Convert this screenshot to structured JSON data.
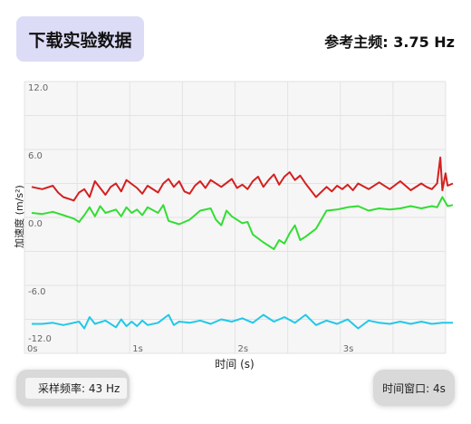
{
  "header": {
    "download_button": "下载实验数据",
    "main_frequency": "参考主频: 3.75 Hz"
  },
  "footer": {
    "sample_rate": "采样频率: 43 Hz",
    "time_window": "时间窗口: 4s"
  },
  "colors": {
    "red": "#d42020",
    "green": "#33dd33",
    "cyan": "#22c8e8"
  },
  "chart_data": {
    "type": "line",
    "xlabel": "时间 (s)",
    "ylabel": "加速度 (m/s²)",
    "xlim": [
      0,
      4
    ],
    "ylim": [
      -12,
      12
    ],
    "yticks": [
      "12.0",
      "6.0",
      "0.0",
      "-6.0",
      "-12.0"
    ],
    "yticks_values": [
      12,
      6,
      0,
      -6,
      -12
    ],
    "xticks": [
      "0s",
      "1s",
      "2s",
      "3s"
    ],
    "xticks_values": [
      0,
      1,
      2,
      3
    ],
    "grid": true,
    "series": [
      {
        "color": "red",
        "x": [
          0,
          0.1,
          0.2,
          0.25,
          0.3,
          0.4,
          0.45,
          0.5,
          0.55,
          0.6,
          0.7,
          0.75,
          0.8,
          0.85,
          0.9,
          1.0,
          1.05,
          1.1,
          1.2,
          1.25,
          1.3,
          1.35,
          1.4,
          1.45,
          1.5,
          1.55,
          1.6,
          1.65,
          1.7,
          1.8,
          1.9,
          1.95,
          2.0,
          2.05,
          2.1,
          2.15,
          2.2,
          2.25,
          2.3,
          2.35,
          2.4,
          2.45,
          2.5,
          2.55,
          2.6,
          2.65,
          2.7,
          2.8,
          2.85,
          2.9,
          2.95,
          3.0,
          3.05,
          3.1,
          3.2,
          3.3,
          3.4,
          3.5,
          3.6,
          3.7,
          3.75,
          3.8,
          3.85,
          3.88,
          3.9,
          3.93,
          3.95,
          4.0
        ],
        "y": [
          2.7,
          2.5,
          2.8,
          2.2,
          1.8,
          1.5,
          2.2,
          2.5,
          1.8,
          3.2,
          2.0,
          2.7,
          3.0,
          2.3,
          3.3,
          2.6,
          2.1,
          2.8,
          2.2,
          3.0,
          3.4,
          2.7,
          3.2,
          2.3,
          2.1,
          2.8,
          3.2,
          2.6,
          3.3,
          2.7,
          3.4,
          2.6,
          2.9,
          2.5,
          3.2,
          3.6,
          2.7,
          3.3,
          3.8,
          2.9,
          3.6,
          4.0,
          3.3,
          3.7,
          3.0,
          2.4,
          1.8,
          2.7,
          2.3,
          2.8,
          2.5,
          2.9,
          2.4,
          3.0,
          2.5,
          3.1,
          2.5,
          3.2,
          2.4,
          3.0,
          2.7,
          2.5,
          3.0,
          5.3,
          2.4,
          3.9,
          2.8,
          3.0
        ]
      },
      {
        "color": "green",
        "x": [
          0,
          0.1,
          0.2,
          0.3,
          0.4,
          0.45,
          0.5,
          0.55,
          0.6,
          0.65,
          0.7,
          0.8,
          0.85,
          0.9,
          0.95,
          1.0,
          1.05,
          1.1,
          1.2,
          1.25,
          1.3,
          1.4,
          1.5,
          1.6,
          1.7,
          1.75,
          1.8,
          1.85,
          1.9,
          2.0,
          2.05,
          2.1,
          2.2,
          2.3,
          2.35,
          2.4,
          2.45,
          2.5,
          2.55,
          2.6,
          2.7,
          2.8,
          2.9,
          3.0,
          3.1,
          3.2,
          3.3,
          3.4,
          3.5,
          3.6,
          3.7,
          3.8,
          3.85,
          3.9,
          3.95,
          4.0
        ],
        "y": [
          0.4,
          0.3,
          0.5,
          0.2,
          -0.1,
          -0.4,
          0.2,
          0.9,
          0.1,
          1.0,
          0.4,
          0.7,
          0.1,
          0.9,
          0.4,
          0.7,
          0.2,
          0.9,
          0.4,
          1.1,
          -0.3,
          -0.6,
          -0.2,
          0.6,
          0.8,
          -0.2,
          -0.7,
          0.6,
          0.1,
          -0.5,
          -0.4,
          -1.5,
          -2.2,
          -2.8,
          -2.0,
          -2.3,
          -1.4,
          -0.7,
          -2.0,
          -1.7,
          -1.0,
          0.6,
          0.7,
          0.9,
          1.0,
          0.6,
          0.8,
          0.7,
          0.8,
          1.0,
          0.8,
          1.0,
          0.9,
          1.8,
          1.0,
          1.1
        ]
      },
      {
        "color": "cyan",
        "x": [
          0,
          0.1,
          0.2,
          0.3,
          0.45,
          0.5,
          0.55,
          0.6,
          0.7,
          0.8,
          0.85,
          0.9,
          0.95,
          1.0,
          1.05,
          1.1,
          1.2,
          1.3,
          1.35,
          1.4,
          1.5,
          1.6,
          1.7,
          1.8,
          1.9,
          2.0,
          2.1,
          2.2,
          2.3,
          2.4,
          2.5,
          2.6,
          2.7,
          2.8,
          2.9,
          3.0,
          3.1,
          3.2,
          3.3,
          3.4,
          3.5,
          3.6,
          3.7,
          3.8,
          3.9,
          4.0
        ],
        "y": [
          -9.4,
          -9.4,
          -9.3,
          -9.5,
          -9.2,
          -9.8,
          -8.8,
          -9.4,
          -9.1,
          -9.7,
          -9.0,
          -9.6,
          -9.2,
          -9.6,
          -9.1,
          -9.5,
          -9.3,
          -8.6,
          -9.5,
          -9.2,
          -9.3,
          -9.1,
          -9.4,
          -9.0,
          -9.2,
          -8.9,
          -9.3,
          -8.6,
          -9.2,
          -8.8,
          -9.3,
          -8.6,
          -9.5,
          -9.1,
          -9.4,
          -9.0,
          -9.8,
          -9.1,
          -9.3,
          -9.4,
          -9.2,
          -9.4,
          -9.2,
          -9.4,
          -9.3,
          -9.3
        ]
      }
    ]
  }
}
